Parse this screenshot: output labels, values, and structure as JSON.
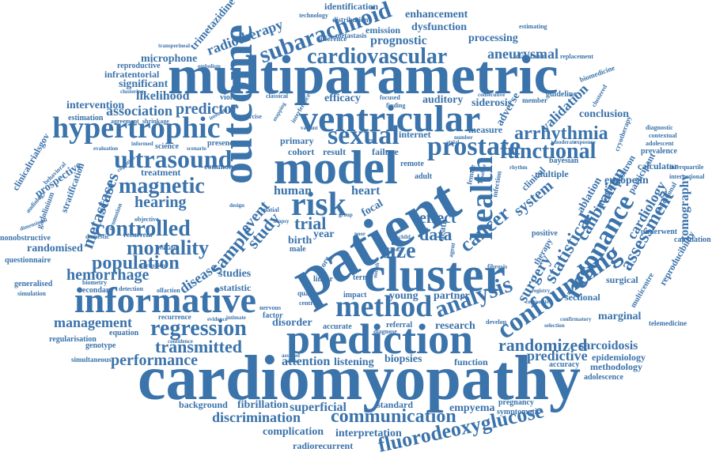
{
  "word_color": "#3b73ab",
  "background_color": "#ffffff",
  "words": {
    "patient": "patient",
    "cardiomyopathy": "cardiomyopathy",
    "multiparametric": "multiparametric",
    "outcome": "outcome",
    "cluster": "cluster",
    "model": "model",
    "ventricular": "ventricular",
    "prediction": "prediction",
    "informative": "informative",
    "hypertrophic": "hypertrophic",
    "method": "method",
    "sexual": "sexual",
    "prostate": "prostate",
    "risk": "risk",
    "health": "health",
    "analysis": "analysis",
    "resonance": "resonance",
    "confounding": "confounding",
    "subarachnoid": "subarachnoid",
    "cardiovascular": "cardiovascular",
    "ultrasound": "ultrasound",
    "magnetic": "magnetic",
    "controlled": "controlled",
    "mortality": "mortality",
    "population": "population",
    "regression": "regression",
    "functional": "functional",
    "arrhythmia": "arrhythmia",
    "cancer": "cancer",
    "statistical": "statistical",
    "communication": "communication",
    "fluorodeoxyglucose": "fluorodeoxyglucose",
    "randomized": "randomized",
    "assessment": "assessment",
    "calibration": "calibration",
    "metastases": "metastases",
    "hemorrhage": "hemorrhage",
    "management": "management",
    "transmitted": "transmitted",
    "performance": "performance",
    "size": "size",
    "data": "data",
    "effect": "effect",
    "sample": "sample",
    "study": "study",
    "event": "event",
    "trial": "trial",
    "disease": "disease",
    "surgery": "surgery",
    "system": "system",
    "radiotherapy": "radiotherapy",
    "aneurysmal": "aneurysmal",
    "predictor": "predictor",
    "association": "association",
    "likelihood": "likelihood",
    "intervention": "intervention",
    "significant": "significant",
    "infratentorial": "infratentorial",
    "microphone": "microphone",
    "reproductive": "reproductive",
    "trimetazidine": "trimetazidine",
    "identification": "identification",
    "enhancement": "enhancement",
    "emission": "emission",
    "dysfunction": "dysfunction",
    "prognostic": "prognostic",
    "processing": "processing",
    "distribution": "distribution",
    "technology": "technology",
    "difference": "difference",
    "metastasis": "metastasis",
    "efficacy": "efficacy",
    "auditory": "auditory",
    "siderosis": "siderosis",
    "adverse": "adverse",
    "validation": "validation",
    "conclusion": "conclusion",
    "guideline": "guideline",
    "biomedicine": "biomedicine",
    "classroom": "classroom",
    "replacement": "replacement",
    "estimating": "estimating",
    "hearing": "hearing",
    "treatment": "treatment",
    "science": "science",
    "presence": "presence",
    "violence": "violence",
    "estimation": "estimation",
    "clinicaltrialsgov": "clinicaltrialsgov",
    "prospective": "prospective",
    "stratification": "stratification",
    "gadolinium": "gadolinium",
    "randomised": "randomised",
    "nonobstructive": "nonobstructive",
    "questionnaire": "questionnaire",
    "generalised": "generalised",
    "simulation": "simulation",
    "secondary": "secondary",
    "regularisation": "regularisation",
    "equation": "equation",
    "genotype": "genotype",
    "simultaneous": "simultaneous",
    "recurrence": "recurrence",
    "studies": "studies",
    "statistic": "statistic",
    "disorder": "disorder",
    "attention": "attention",
    "listening": "listening",
    "biopsies": "biopsies",
    "function": "function",
    "background": "background",
    "fibrillation": "fibrillation",
    "superficial": "superficial",
    "standard": "standard",
    "empyema": "empyema",
    "pregnancy": "pregnancy",
    "symptomatic": "symptomatic",
    "discrimination": "discrimination",
    "complication": "complication",
    "interpretation": "interpretation",
    "radiorecurrent": "radiorecurrent",
    "human": "human",
    "heart": "heart",
    "focal": "focal",
    "birth": "birth",
    "year": "year",
    "male": "male",
    "young": "young",
    "partner": "partner",
    "research": "research",
    "predictive": "predictive",
    "sarcoidosis": "sarcoidosis",
    "epidemiology": "epidemiology",
    "methodology": "methodology",
    "adolescence": "adolescence",
    "accuracy": "accuracy",
    "marginal": "marginal",
    "sectional": "sectional",
    "surgical": "surgical",
    "multicentre": "multicentre",
    "telemedicine": "telemedicine",
    "reproducibility": "reproducibility",
    "calculation": "calculation",
    "tomography": "tomography",
    "cardiology": "cardiology",
    "imaging": "imaging",
    "positron": "positron",
    "european": "european",
    "bayesian": "bayesian",
    "multiple": "multiple",
    "clinical": "clinical",
    "ablation": "ablation",
    "participant": "participant",
    "calculator": "calculator",
    "international": "international",
    "interquartile": "interquartile",
    "prevalence": "prevalence",
    "underwent": "underwent",
    "conditional": "conditional",
    "adolescent": "adolescent",
    "diagnostic": "diagnostic",
    "contextual": "contextual",
    "cohort": "cohort",
    "result": "result",
    "failure": "failure",
    "internet": "internet",
    "primary": "primary",
    "measure": "measure",
    "remote": "remote",
    "adult": "adult",
    "impact": "impact",
    "term": "term",
    "linear": "linear",
    "score": "score",
    "accurate": "accurate",
    "referral": "referral",
    "diagnose": "diagnose",
    "develop": "develop",
    "positive": "positive",
    "common": "common",
    "survival": "survival",
    "promotion": "promotion",
    "objective": "objective",
    "domestic": "domestic",
    "recurrent": "recurrent",
    "detection": "detection",
    "olfaction": "olfaction",
    "biometry": "biometry",
    "correction": "correction",
    "available": "available",
    "confidence": "confidence",
    "evidence": "evidence",
    "intimate": "intimate",
    "assisted": "assisted",
    "nervous": "nervous",
    "factor": "factor",
    "quality": "quality",
    "central": "central",
    "fibrosis": "fibrosis",
    "registry": "registry",
    "composite": "composite",
    "selection": "selection",
    "confirmatory": "confirmatory",
    "design": "design",
    "spatial": "spatial",
    "biopsy": "biopsy",
    "group": "group",
    "poor": "poor",
    "child": "child",
    "death": "death",
    "agent": "agent",
    "mapping": "mapping",
    "variant": "variant",
    "interference": "interference",
    "exercise": "exercise",
    "classical": "classical",
    "intensity": "intensity",
    "shrinkage": "shrinkage",
    "agreement": "agreement",
    "informed": "informed",
    "scenario": "scenario",
    "evaluation": "evaluation",
    "cognition": "cognition",
    "behavioral": "behavioral",
    "audiology": "audiology",
    "dimensional": "dimensional",
    "transperineal": "transperineal",
    "embolism": "embolism",
    "clustering": "clustering",
    "focused": "focused",
    "finding": "finding",
    "member": "member",
    "moderate": "moderate",
    "exposure": "exposure",
    "clustered": "clustered",
    "cryotherapy": "cryotherapy",
    "therapy": "therapy",
    "infection": "infection",
    "female": "female",
    "consecutive": "consecutive",
    "number": "number",
    "atrial": "atrial",
    "test": "test",
    "cross": "cross",
    "month": "month",
    "rhythm": "rhythm",
    "baseline": "baseline"
  }
}
